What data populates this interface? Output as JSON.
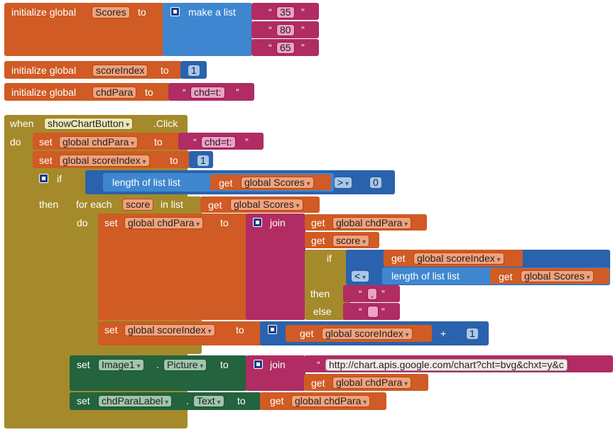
{
  "colors": {
    "variables": "#d05b24",
    "lists": "#3e87d0",
    "text": "#b02c63",
    "control": "#a58a2b",
    "component": "#23633e",
    "math": "#2b62ad"
  },
  "init1": {
    "prefix": "initialize global",
    "name": "Scores",
    "to": "to",
    "make_list": "make a list",
    "items": [
      "35",
      "80",
      "65"
    ]
  },
  "init2": {
    "prefix": "initialize global",
    "name": "scoreIndex",
    "to": "to",
    "value": "1"
  },
  "init3": {
    "prefix": "initialize global",
    "name": "chdPara",
    "to": "to",
    "value": "chd=t:"
  },
  "event": {
    "when": "when",
    "component": "showChartButton",
    "event_name": ".Click",
    "do": "do",
    "set1": {
      "set": "set",
      "var": "global chdPara",
      "to": "to",
      "value": "chd=t:"
    },
    "set2": {
      "set": "set",
      "var": "global scoreIndex",
      "to": "to",
      "value": "1"
    },
    "if_block": {
      "if": "if",
      "then": "then",
      "cond": {
        "length_label": "length of list  list",
        "get": "get",
        "var": "global Scores",
        "op": ">",
        "rhs": "0"
      },
      "foreach": {
        "for_each": "for each",
        "item": "score",
        "in_list": "in list",
        "get": "get",
        "list_var": "global Scores",
        "do": "do",
        "set_chd": {
          "set": "set",
          "var": "global chdPara",
          "to": "to",
          "join": "join",
          "get1": "get",
          "v1": "global chdPara",
          "get2": "get",
          "v2": "score",
          "inner_if": {
            "if": "if",
            "get": "get",
            "v_index": "global scoreIndex",
            "op": "<",
            "length_label": "length of list  list",
            "get_list": "get",
            "v_list": "global Scores",
            "then": "then",
            "then_val": ",",
            "else": "else",
            "else_val": ""
          }
        },
        "set_index": {
          "set": "set",
          "var": "global scoreIndex",
          "to": "to",
          "get": "get",
          "v": "global scoreIndex",
          "op": "+",
          "inc": "1"
        }
      }
    },
    "set_image": {
      "set": "set",
      "component": "Image1",
      "dot": ".",
      "prop": "Picture",
      "to": "to",
      "join": "join",
      "url": "http://chart.apis.google.com/chart?cht=bvg&chxt=y&c",
      "get": "get",
      "v": "global chdPara"
    },
    "set_label": {
      "set": "set",
      "component": "chdParaLabel",
      "dot": ".",
      "prop": "Text",
      "to": "to",
      "get": "get",
      "v": "global chdPara"
    }
  }
}
